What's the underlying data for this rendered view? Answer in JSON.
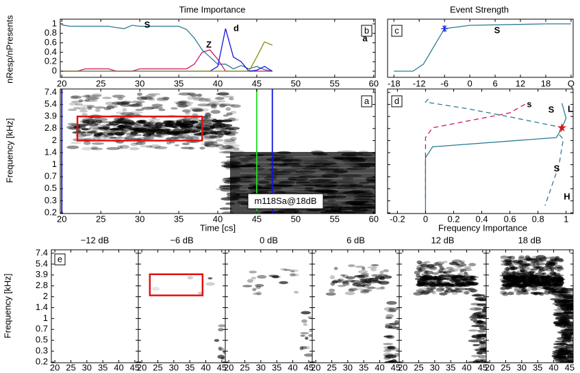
{
  "chart_data": [
    {
      "type": "line",
      "panel_label": "b",
      "title": "Time Importance",
      "y_label": "nResp/nPresents",
      "x": [
        20,
        21,
        22,
        23,
        24,
        25,
        26,
        27,
        28,
        29,
        30,
        31,
        32,
        33,
        34,
        35,
        36,
        37,
        38,
        39,
        40,
        41,
        42,
        43,
        44,
        45,
        46,
        47
      ],
      "xlim": [
        19.8,
        60.2
      ],
      "xticks": [
        20,
        25,
        30,
        35,
        40,
        45,
        50,
        55,
        60
      ],
      "ylim": [
        -0.13,
        1.1
      ],
      "yticks": [
        0,
        0.2,
        0.4,
        0.6,
        0.8,
        1
      ],
      "series": [
        {
          "name": "S",
          "color": "#2b7a93",
          "values": [
            0.98,
            0.95,
            0.95,
            0.95,
            0.95,
            0.95,
            0.95,
            0.92,
            0.9,
            0.97,
            0.95,
            0.95,
            0.95,
            0.95,
            0.95,
            0.95,
            0.88,
            0.7,
            0.45,
            0.3,
            0.15,
            0.15,
            0.05,
            0.12,
            0.05,
            0.1,
            0.03,
            0
          ]
        },
        {
          "name": "Z",
          "color": "#d0106a",
          "values": [
            0,
            0,
            0,
            0.05,
            0.05,
            0.05,
            0.05,
            0,
            0,
            0,
            0.05,
            0.05,
            0.05,
            0.05,
            0.05,
            0.05,
            0.05,
            0.15,
            0.4,
            0.45,
            0.25,
            0,
            0,
            0,
            0,
            0,
            0,
            0
          ]
        },
        {
          "name": "d",
          "color": "#1010e0",
          "values": [
            0,
            0,
            0,
            0,
            0,
            0,
            0,
            0,
            0,
            0,
            0,
            0,
            0,
            0,
            0,
            0,
            0,
            0,
            0,
            0,
            0.1,
            0.9,
            0.3,
            0.2,
            0,
            0.02,
            0.1,
            0
          ]
        },
        {
          "name": "a",
          "color": "#8a8a10",
          "values": [
            0,
            0,
            0,
            0,
            0,
            0,
            0,
            0,
            0,
            0,
            0,
            0,
            0,
            0,
            0,
            0,
            0,
            0,
            0,
            0,
            0,
            0,
            0,
            0,
            0,
            0.3,
            0.62,
            0.55
          ]
        }
      ]
    },
    {
      "type": "line",
      "panel_label": "c",
      "title": "Event Strength",
      "series_label": "S",
      "color": "#2b7a93",
      "x": [
        -18,
        -13.5,
        -11,
        -6,
        0,
        18,
        24
      ],
      "values": [
        0,
        0,
        0.15,
        0.9,
        0.97,
        1,
        1
      ],
      "marker_index": 3,
      "marker_color": "#1a2be0",
      "xlim": [
        -19.5,
        24.5
      ],
      "xticks": [
        -18,
        -12,
        -6,
        0,
        6,
        12,
        18,
        {
          "value": 24,
          "label": "Q"
        }
      ],
      "ylim": [
        -0.13,
        1.1
      ]
    },
    {
      "type": "spectrogram",
      "panel_label": "a",
      "y_label": "Frequency [kHz]",
      "x_label": "Time [cs]",
      "xlim": [
        19.8,
        60.2
      ],
      "xticks": [
        20,
        25,
        30,
        35,
        40,
        45,
        50,
        55,
        60
      ],
      "yticks": [
        0.2,
        0.3,
        0.5,
        0.7,
        1,
        1.4,
        2,
        2.8,
        3.9,
        5.4,
        7.4
      ],
      "markers": [
        {
          "x": 20,
          "color": "#1010e0"
        },
        {
          "x": 45,
          "color": "#20e020"
        },
        {
          "x": 47,
          "color": "#1010e0"
        }
      ],
      "highlight": {
        "x": [
          22,
          38
        ],
        "y": [
          2,
          3.9
        ],
        "color": "#e01010"
      },
      "annotation": "m118Sa@18dB"
    },
    {
      "type": "line",
      "orientation": "horizontal",
      "panel_label": "d",
      "x_label": "Frequency Importance",
      "xlim": [
        -0.27,
        1.05
      ],
      "xticks": [
        -0.2,
        0,
        0.2,
        0.4,
        0.6,
        0.8,
        1
      ],
      "yticks": [
        0.2,
        0.3,
        0.5,
        0.7,
        1,
        1.4,
        2,
        2.8,
        3.9,
        5.4,
        7.4
      ],
      "series": [
        {
          "name": "s",
          "color": "#d0106a",
          "dash": true,
          "freq": [
            0.34,
            2.2,
            2.87,
            4.35,
            5.6
          ],
          "values": [
            0,
            0,
            0.05,
            0.6,
            0.72
          ]
        },
        {
          "name": "S",
          "color": "#2b7a93",
          "dash": true,
          "freq": [
            2.87,
            3.86,
            4.86,
            5.8,
            6.3
          ],
          "values": [
            0.98,
            0.6,
            0.3,
            0,
            0.02
          ]
        },
        {
          "name": "L",
          "color": "#2b7a93",
          "dash": false,
          "freq": [
            0.2,
            1.23,
            1.69,
            2.2,
            2.87,
            3.74,
            5.6
          ],
          "values": [
            0,
            0,
            0.05,
            0.93,
            0.97,
            1,
            0.97
          ]
        },
        {
          "name": "S",
          "color": "#2b7a93",
          "dash": true,
          "freq": [
            2.87,
            2.4,
            2.1,
            1,
            0.56,
            0.26
          ],
          "values": [
            0.98,
            0.95,
            0.98,
            0.95,
            0.9,
            0.85
          ]
        }
      ],
      "star": {
        "value": 0.97,
        "freq": 2.87,
        "color": "#e01010"
      },
      "annotations": [
        "H"
      ]
    },
    {
      "type": "spectrogram_series",
      "panel_label": "e",
      "y_label": "Frequency [kHz]",
      "panels": [
        "−12 dB",
        "−6 dB",
        "0 dB",
        "6 dB",
        "12 dB",
        "18 dB"
      ],
      "xlim": [
        18.9,
        46.1
      ],
      "xticks": [
        20,
        25,
        30,
        35,
        40,
        45
      ],
      "yticks": [
        0.2,
        0.3,
        0.5,
        0.7,
        1,
        1.4,
        2,
        2.8,
        3.9,
        5.4,
        7.4
      ],
      "highlight": {
        "panel": 1,
        "x": [
          22.5,
          39
        ],
        "y": [
          2.1,
          4
        ],
        "color": "#e01010"
      }
    }
  ]
}
